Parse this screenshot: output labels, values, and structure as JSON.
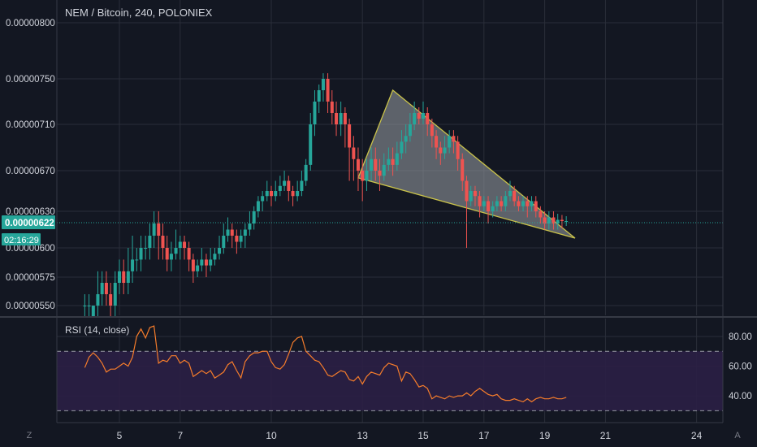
{
  "header": {
    "title": "NEM / Bitcoin, 240, POLONIEX"
  },
  "rsi": {
    "title": "RSI (14, close)"
  },
  "price_badge": {
    "price": "0.00000622",
    "countdown": "02:16:29"
  },
  "corner_buttons": {
    "left": "Z",
    "right": "A"
  },
  "colors": {
    "background": "#131722",
    "grid": "#2a2e39",
    "up": "#26a69a",
    "down": "#ef5350",
    "price_line": "#26a69a",
    "rsi_line": "#f57c2b",
    "rsi_band": "#2b1f45",
    "triangle_fill": "#9aa0a6",
    "triangle_stroke": "#c9c24a",
    "text": "#d1d4dc"
  },
  "chart_data": [
    {
      "type": "candlestick",
      "title": "NEM / Bitcoin, 240, POLONIEX",
      "y_ticks": [
        "0.00000800",
        "0.00000750",
        "0.00000710",
        "0.00000670",
        "0.00000630",
        "0.00000600",
        "0.00000575",
        "0.00000550"
      ],
      "x_ticks": [
        "5",
        "7",
        "10",
        "13",
        "15",
        "17",
        "19",
        "21",
        "24"
      ],
      "last_price": "0.00000622",
      "grid": true,
      "candles": [
        [
          3.86,
          55,
          55,
          54,
          56
        ],
        [
          4.0,
          55,
          55,
          54,
          56
        ],
        [
          4.14,
          54,
          55,
          54,
          55
        ],
        [
          4.29,
          55,
          56,
          54,
          58
        ],
        [
          4.43,
          56,
          57,
          55,
          58
        ],
        [
          4.57,
          57,
          56,
          55,
          58
        ],
        [
          4.71,
          56,
          55,
          54,
          57
        ],
        [
          4.86,
          55,
          57,
          54,
          58
        ],
        [
          5.0,
          57,
          58,
          56,
          59
        ],
        [
          5.14,
          58,
          57,
          56,
          59
        ],
        [
          5.29,
          57,
          58,
          56,
          60
        ],
        [
          5.43,
          58,
          59,
          57,
          61
        ],
        [
          5.57,
          59,
          59,
          58,
          60
        ],
        [
          5.71,
          59,
          60,
          58,
          61
        ],
        [
          5.86,
          60,
          60,
          59,
          61
        ],
        [
          6.0,
          60,
          61,
          59,
          62
        ],
        [
          6.14,
          61,
          62,
          60,
          63
        ],
        [
          6.29,
          62,
          61,
          59,
          63
        ],
        [
          6.43,
          61,
          60,
          59,
          62
        ],
        [
          6.57,
          60,
          59,
          58,
          61
        ],
        [
          6.71,
          59,
          59.5,
          58,
          60.5
        ],
        [
          6.86,
          59.5,
          60,
          59,
          61.5
        ],
        [
          7.0,
          60,
          60.5,
          59,
          61
        ],
        [
          7.14,
          60.5,
          60,
          59,
          61
        ],
        [
          7.29,
          60,
          59,
          58,
          60.5
        ],
        [
          7.43,
          59,
          58,
          57,
          59.5
        ],
        [
          7.57,
          58,
          58.5,
          57.5,
          59
        ],
        [
          7.71,
          58.5,
          59,
          58,
          60
        ],
        [
          7.86,
          59,
          58.5,
          57.5,
          59.5
        ],
        [
          8.0,
          58.5,
          59,
          58,
          60
        ],
        [
          8.14,
          59,
          59.5,
          58.5,
          60
        ],
        [
          8.29,
          59.5,
          60,
          59,
          61
        ],
        [
          8.43,
          60,
          61,
          59.5,
          62
        ],
        [
          8.57,
          61,
          61.5,
          60.5,
          62.5
        ],
        [
          8.71,
          61.5,
          61,
          60,
          62
        ],
        [
          8.86,
          61,
          60.5,
          59.5,
          61.5
        ],
        [
          9.0,
          60.5,
          61,
          60,
          61.5
        ],
        [
          9.14,
          61,
          61.5,
          60,
          62
        ],
        [
          9.29,
          61.5,
          62,
          61,
          63
        ],
        [
          9.43,
          62,
          63,
          61.5,
          63.5
        ],
        [
          9.57,
          63,
          64,
          62.5,
          64.5
        ],
        [
          9.71,
          64,
          64.5,
          63,
          65
        ],
        [
          9.86,
          64.5,
          65,
          64,
          66
        ],
        [
          10.0,
          65,
          64.5,
          63.5,
          65.5
        ],
        [
          10.14,
          64.5,
          65,
          64,
          66
        ],
        [
          10.29,
          65,
          65.5,
          64.5,
          66.5
        ],
        [
          10.43,
          65.5,
          66,
          65,
          67
        ],
        [
          10.57,
          66,
          65,
          64,
          66.5
        ],
        [
          10.71,
          65,
          64.5,
          63.5,
          65.5
        ],
        [
          10.86,
          64.5,
          65,
          64,
          66
        ],
        [
          11.0,
          65,
          66,
          64.5,
          67
        ],
        [
          11.14,
          66,
          67.5,
          65.5,
          68
        ],
        [
          11.29,
          67.5,
          71,
          67,
          72
        ],
        [
          11.43,
          71,
          73,
          70,
          74
        ],
        [
          11.57,
          73,
          74,
          72,
          74.5
        ],
        [
          11.71,
          74,
          75,
          73,
          75.5
        ],
        [
          11.86,
          75,
          73,
          72,
          75.5
        ],
        [
          12.0,
          73,
          72,
          71,
          74
        ],
        [
          12.14,
          72,
          71,
          70,
          73
        ],
        [
          12.29,
          71,
          72,
          70,
          73
        ],
        [
          12.43,
          72,
          71,
          69,
          72.5
        ],
        [
          12.57,
          71,
          69,
          66,
          71.5
        ],
        [
          12.71,
          69,
          68,
          66,
          70
        ],
        [
          12.86,
          68,
          67,
          65,
          69
        ],
        [
          13.0,
          67,
          66,
          64,
          68
        ],
        [
          13.14,
          66,
          67,
          65,
          68
        ],
        [
          13.29,
          67,
          68,
          66,
          69
        ],
        [
          13.43,
          68,
          67,
          66,
          69
        ],
        [
          13.57,
          67,
          66.5,
          65,
          68
        ],
        [
          13.71,
          66.5,
          67.5,
          66,
          68.5
        ],
        [
          13.86,
          67.5,
          68,
          67,
          69
        ],
        [
          14.0,
          68,
          67.5,
          66.5,
          69
        ],
        [
          14.14,
          67.5,
          68.5,
          67,
          69.5
        ],
        [
          14.29,
          68.5,
          69.5,
          68,
          70.5
        ],
        [
          14.43,
          69.5,
          70,
          68.5,
          71
        ],
        [
          14.57,
          70,
          71,
          69.5,
          72
        ],
        [
          14.71,
          71,
          72,
          70.5,
          73
        ],
        [
          14.86,
          72,
          71.5,
          71,
          72.5
        ],
        [
          15.0,
          71.5,
          72,
          71,
          73
        ],
        [
          15.14,
          72,
          71,
          70,
          72.5
        ],
        [
          15.29,
          71,
          70,
          69,
          71.5
        ],
        [
          15.43,
          70,
          69,
          68,
          70.5
        ],
        [
          15.57,
          69,
          68.5,
          67.5,
          69.5
        ],
        [
          15.71,
          68.5,
          69,
          68,
          70
        ],
        [
          15.86,
          69,
          70,
          68.5,
          70.5
        ],
        [
          16.0,
          70,
          69.5,
          68.5,
          70.5
        ],
        [
          16.14,
          69.5,
          68,
          67,
          70
        ],
        [
          16.29,
          68,
          66,
          65,
          68.5
        ],
        [
          16.43,
          66,
          64,
          60,
          66.5
        ],
        [
          16.57,
          64,
          65,
          63.5,
          65.5
        ],
        [
          16.71,
          65,
          64.5,
          63.5,
          65.5
        ],
        [
          16.86,
          64.5,
          63.5,
          62.5,
          65
        ],
        [
          17.0,
          63.5,
          64,
          63,
          64.5
        ],
        [
          17.14,
          64,
          63,
          62,
          64.5
        ],
        [
          17.29,
          63,
          63.5,
          62.5,
          64
        ],
        [
          17.43,
          63.5,
          64,
          63,
          64.5
        ],
        [
          17.57,
          64,
          63.5,
          63,
          64.5
        ],
        [
          17.71,
          63.5,
          64.5,
          63,
          65
        ],
        [
          17.86,
          64.5,
          65,
          64,
          66
        ],
        [
          18.0,
          65,
          64,
          63.5,
          65.5
        ],
        [
          18.14,
          64,
          63.5,
          63,
          64.5
        ],
        [
          18.29,
          63.5,
          64,
          63,
          64.5
        ],
        [
          18.43,
          64,
          63.5,
          62.5,
          64.5
        ],
        [
          18.57,
          63.5,
          64,
          63,
          64.5
        ],
        [
          18.71,
          64,
          63,
          62.5,
          64.5
        ],
        [
          18.86,
          63,
          62.5,
          62,
          63.5
        ],
        [
          19.0,
          62.5,
          62,
          61.5,
          63
        ],
        [
          19.14,
          62,
          62.5,
          61.5,
          63
        ],
        [
          19.29,
          62.5,
          62,
          61.5,
          63
        ],
        [
          19.43,
          62,
          62.3,
          61.5,
          62.8
        ],
        [
          19.57,
          62.3,
          62.2,
          61.6,
          62.7
        ],
        [
          19.71,
          62.2,
          62.2,
          61.8,
          62.6
        ]
      ],
      "drawing": {
        "type": "triangle",
        "points": [
          [
            12.86,
            66.3
          ],
          [
            14.0,
            74.0
          ],
          [
            20.0,
            60.8
          ]
        ]
      }
    },
    {
      "type": "line",
      "title": "RSI (14, close)",
      "y_ticks": [
        "80.00",
        "60.00",
        "40.00"
      ],
      "levels": [
        70,
        30
      ],
      "x": [
        3.86,
        4.0,
        4.14,
        4.29,
        4.43,
        4.57,
        4.71,
        4.86,
        5.0,
        5.14,
        5.29,
        5.43,
        5.57,
        5.71,
        5.86,
        6.0,
        6.14,
        6.29,
        6.43,
        6.57,
        6.71,
        6.86,
        7.0,
        7.14,
        7.29,
        7.43,
        7.57,
        7.71,
        7.86,
        8.0,
        8.14,
        8.29,
        8.43,
        8.57,
        8.71,
        8.86,
        9.0,
        9.14,
        9.29,
        9.43,
        9.57,
        9.71,
        9.86,
        10.0,
        10.14,
        10.29,
        10.43,
        10.57,
        10.71,
        10.86,
        11.0,
        11.14,
        11.29,
        11.43,
        11.57,
        11.71,
        11.86,
        12.0,
        12.14,
        12.29,
        12.43,
        12.57,
        12.71,
        12.86,
        13.0,
        13.14,
        13.29,
        13.43,
        13.57,
        13.71,
        13.86,
        14.0,
        14.14,
        14.29,
        14.43,
        14.57,
        14.71,
        14.86,
        15.0,
        15.14,
        15.29,
        15.43,
        15.57,
        15.71,
        15.86,
        16.0,
        16.14,
        16.29,
        16.43,
        16.57,
        16.71,
        16.86,
        17.0,
        17.14,
        17.29,
        17.43,
        17.57,
        17.71,
        17.86,
        18.0,
        18.14,
        18.29,
        18.43,
        18.57,
        18.71,
        18.86,
        19.0,
        19.14,
        19.29,
        19.43,
        19.57,
        19.71
      ],
      "values": [
        59,
        66,
        69,
        66,
        62,
        56,
        58,
        58,
        60,
        62,
        60,
        66,
        80,
        85,
        79,
        86,
        87,
        62,
        64,
        63,
        67,
        67,
        62,
        64,
        62,
        53,
        55,
        57,
        55,
        57,
        52,
        54,
        56,
        61,
        63,
        57,
        52,
        63,
        67,
        69,
        69,
        70,
        70,
        63,
        59,
        58,
        61,
        68,
        76,
        79,
        80,
        70,
        67,
        64,
        63,
        59,
        54,
        53,
        55,
        57,
        56,
        51,
        50,
        53,
        48,
        53,
        56,
        55,
        54,
        59,
        62,
        61,
        60,
        50,
        56,
        55,
        51,
        46,
        47,
        45,
        38,
        40,
        39,
        38,
        40,
        39,
        40,
        40,
        42,
        40,
        43,
        45,
        43,
        41,
        40,
        41,
        38,
        37,
        37,
        38,
        37,
        36,
        38,
        36,
        38,
        39,
        38,
        38,
        39,
        38,
        38,
        39
      ],
      "ylim": [
        22,
        92
      ]
    }
  ]
}
